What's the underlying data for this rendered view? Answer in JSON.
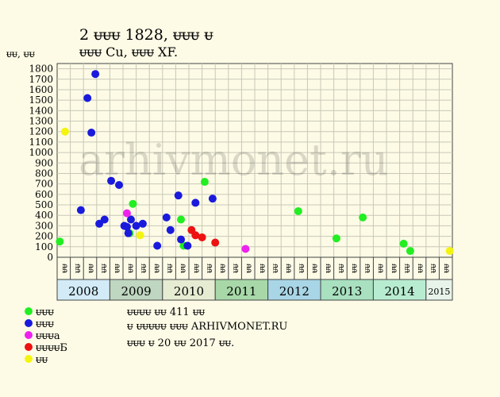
{
  "title": "2 ᵾᵾᵾ 1828, ᵾᵾᵾ ᵾ",
  "subtitle": "ᵾᵾᵾ Cu, ᵾᵾᵾ XF.",
  "ylabel": "ᵾᵾ, ᵾᵾ",
  "watermark": "arhivmonet.ru",
  "chart_data": {
    "type": "scatter",
    "ylim": [
      0,
      1850
    ],
    "yticks": [
      0,
      100,
      200,
      300,
      400,
      500,
      600,
      700,
      800,
      900,
      1000,
      1100,
      1200,
      1300,
      1400,
      1500,
      1600,
      1700,
      1800
    ],
    "grid": true,
    "period_labels": [
      "ᵾᵾ",
      "ᵾᵾ",
      "ᵾᵾ",
      "ᵾᵾ"
    ],
    "years": [
      {
        "label": "2008",
        "color": "#d2ebf7"
      },
      {
        "label": "2009",
        "color": "#bfd6c0"
      },
      {
        "label": "2010",
        "color": "#e6ecd2"
      },
      {
        "label": "2011",
        "color": "#a8d8a8"
      },
      {
        "label": "2012",
        "color": "#a9d6e6"
      },
      {
        "label": "2013",
        "color": "#a8e0c0"
      },
      {
        "label": "2014",
        "color": "#b8ecd0"
      },
      {
        "label": "2015",
        "color": "#e8f4ea"
      }
    ],
    "series": [
      {
        "name": "ᵾᵾᵾ",
        "color": "#22ee22",
        "points": [
          {
            "x": 0.2,
            "y": 150
          },
          {
            "x": 5.5,
            "y": 230
          },
          {
            "x": 5.75,
            "y": 510
          },
          {
            "x": 9.4,
            "y": 360
          },
          {
            "x": 9.6,
            "y": 110
          },
          {
            "x": 11.2,
            "y": 720
          },
          {
            "x": 18.3,
            "y": 440
          },
          {
            "x": 21.2,
            "y": 180
          },
          {
            "x": 23.2,
            "y": 380
          },
          {
            "x": 26.3,
            "y": 130
          },
          {
            "x": 26.8,
            "y": 60
          }
        ]
      },
      {
        "name": "ᵾᵾᵾ",
        "color": "#1a1add",
        "points": [
          {
            "x": 1.8,
            "y": 450
          },
          {
            "x": 2.3,
            "y": 1520
          },
          {
            "x": 2.6,
            "y": 1190
          },
          {
            "x": 2.9,
            "y": 1750
          },
          {
            "x": 3.2,
            "y": 320
          },
          {
            "x": 3.6,
            "y": 360
          },
          {
            "x": 4.1,
            "y": 730
          },
          {
            "x": 4.7,
            "y": 690
          },
          {
            "x": 5.1,
            "y": 300
          },
          {
            "x": 5.3,
            "y": 290
          },
          {
            "x": 5.4,
            "y": 230
          },
          {
            "x": 5.6,
            "y": 360
          },
          {
            "x": 6.0,
            "y": 300
          },
          {
            "x": 6.5,
            "y": 320
          },
          {
            "x": 7.6,
            "y": 110
          },
          {
            "x": 8.3,
            "y": 380
          },
          {
            "x": 8.6,
            "y": 260
          },
          {
            "x": 9.2,
            "y": 590
          },
          {
            "x": 9.4,
            "y": 170
          },
          {
            "x": 9.9,
            "y": 110
          },
          {
            "x": 10.5,
            "y": 520
          },
          {
            "x": 11.8,
            "y": 560
          }
        ]
      },
      {
        "name": "ᵾᵾᵾa",
        "color": "#ee22ee",
        "points": [
          {
            "x": 5.3,
            "y": 420
          },
          {
            "x": 14.3,
            "y": 80
          }
        ]
      },
      {
        "name": "ᵾᵾᵾᵾБ",
        "color": "#ee1111",
        "points": [
          {
            "x": 10.2,
            "y": 260
          },
          {
            "x": 10.5,
            "y": 210
          },
          {
            "x": 11.0,
            "y": 190
          },
          {
            "x": 12.0,
            "y": 140
          }
        ]
      },
      {
        "name": "ᵾᵾ",
        "color": "#f4f410",
        "points": [
          {
            "x": 0.6,
            "y": 1200
          },
          {
            "x": 6.3,
            "y": 210
          },
          {
            "x": 29.8,
            "y": 60
          }
        ]
      }
    ]
  },
  "info": {
    "line1": "ᵾᵾᵾᵾ ᵾᵾ 411 ᵾᵾ",
    "line2": "ᵾ ᵾᵾᵾᵾᵾ ᵾᵾᵾ ARHIVMONET.RU",
    "line3": "ᵾᵾᵾ ᵾ 20 ᵾᵾ 2017 ᵾᵾ."
  }
}
